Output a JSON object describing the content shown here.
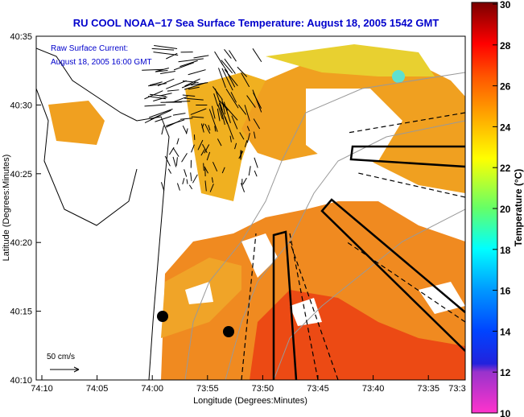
{
  "title": "RU COOL  NOAA−17  Sea Surface Temperature:  August 18, 2005 1542 GMT",
  "annotation": {
    "line1": "Raw Surface Current:",
    "line2": "August 18, 2005 16:00 GMT"
  },
  "scale_label": "50 cm/s",
  "xlabel": "Longitude (Degrees:Minutes)",
  "ylabel": "Latitude (Degrees:Minutes)",
  "xticks": [
    "74:10",
    "74:05",
    "74:00",
    "73:55",
    "73:50",
    "73:45",
    "73:40",
    "73:35",
    "73:3"
  ],
  "yticks": [
    "40:35",
    "40:30",
    "40:25",
    "40:20",
    "40:15",
    "40:10"
  ],
  "colorbar": {
    "label": "Temperature (°C)",
    "ticks": [
      "30",
      "28",
      "26",
      "24",
      "22",
      "20",
      "18",
      "16",
      "14",
      "12",
      "10"
    ],
    "range": [
      10,
      30
    ]
  },
  "colors": {
    "title": "#0000cc",
    "warm": "#f08020",
    "hot": "#e83010",
    "cool": "#f0c020"
  }
}
